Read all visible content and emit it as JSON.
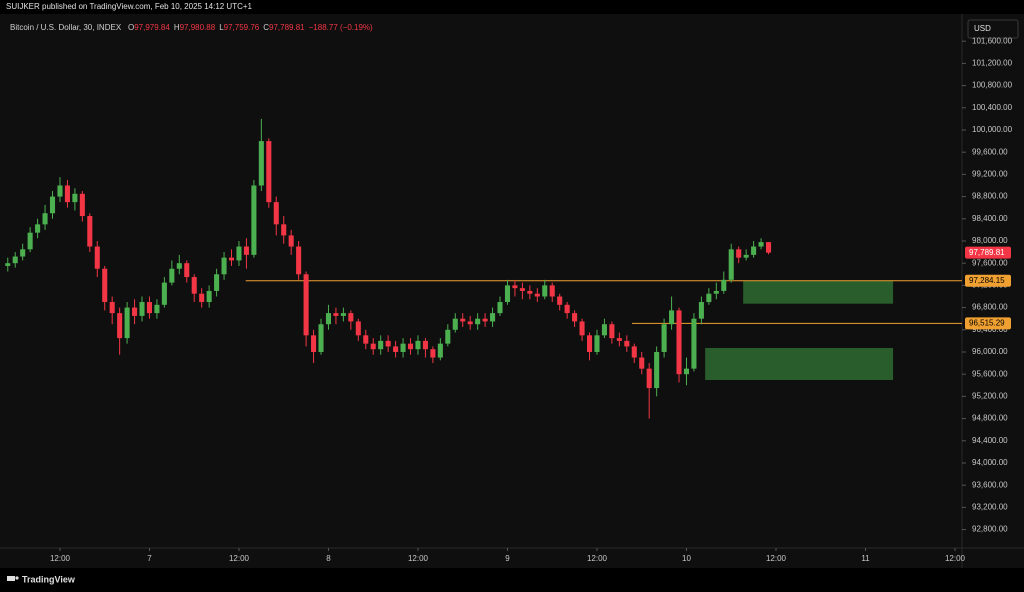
{
  "header": "SUIJKER published on TradingView.com, Feb 10, 2025 14:12 UTC+1",
  "footer": "TradingView",
  "chart_data": {
    "type": "candlestick",
    "symbol": "Bitcoin / U.S. Dollar, 30, INDEX",
    "ohlc_legend": [
      {
        "key": "O",
        "value": "97,979.84"
      },
      {
        "key": "H",
        "value": "97,980.88"
      },
      {
        "key": "L",
        "value": "97,759.76"
      },
      {
        "key": "C",
        "value": "97,789.81"
      }
    ],
    "change": "−188.77 (−0.19%)",
    "currency": "USD",
    "up_color": "#4caf50",
    "down_color": "#f23645",
    "xlim": [
      4.63,
      132.94
    ],
    "xticks": [
      {
        "value": 12,
        "label": "12:00"
      },
      {
        "value": 24,
        "label": "7"
      },
      {
        "value": 36,
        "label": "12:00"
      },
      {
        "value": 48,
        "label": "8"
      },
      {
        "value": 60,
        "label": "12:00"
      },
      {
        "value": 72,
        "label": "9"
      },
      {
        "value": 84,
        "label": "12:00"
      },
      {
        "value": 96,
        "label": "10"
      },
      {
        "value": 108,
        "label": "12:00"
      },
      {
        "value": 120,
        "label": "11"
      },
      {
        "value": 132,
        "label": "12:00"
      }
    ],
    "ylim": [
      92468,
      102036
    ],
    "yticks": [
      {
        "value": 92800,
        "label": "92,800.00"
      },
      {
        "value": 93200,
        "label": "93,200.00"
      },
      {
        "value": 93600,
        "label": "93,600.00"
      },
      {
        "value": 94000,
        "label": "94,000.00"
      },
      {
        "value": 94400,
        "label": "94,400.00"
      },
      {
        "value": 94800,
        "label": "94,800.00"
      },
      {
        "value": 95200,
        "label": "95,200.00"
      },
      {
        "value": 95600,
        "label": "95,600.00"
      },
      {
        "value": 96000,
        "label": "96,000.00"
      },
      {
        "value": 96400,
        "label": "96,400.00"
      },
      {
        "value": 96800,
        "label": "96,800.00"
      },
      {
        "value": 97200,
        "label": "97,200.00"
      },
      {
        "value": 97600,
        "label": "97,600.00"
      },
      {
        "value": 98000,
        "label": "98,000.00"
      },
      {
        "value": 98400,
        "label": "98,400.00"
      },
      {
        "value": 98800,
        "label": "98,800.00"
      },
      {
        "value": 99200,
        "label": "99,200.00"
      },
      {
        "value": 99600,
        "label": "99,600.00"
      },
      {
        "value": 100000,
        "label": "100,000.00"
      },
      {
        "value": 100400,
        "label": "100,400.00"
      },
      {
        "value": 100800,
        "label": "100,800.00"
      },
      {
        "value": 101200,
        "label": "101,200.00"
      },
      {
        "value": 101600,
        "label": "101,600.00"
      }
    ],
    "grid": false,
    "candles": {
      "x": [
        5,
        6,
        7,
        8,
        9,
        10,
        11,
        12,
        13,
        14,
        15,
        16,
        17,
        18,
        19,
        20,
        21,
        22,
        23,
        24,
        25,
        26,
        27,
        28,
        29,
        30,
        31,
        32,
        33,
        34,
        35,
        36,
        37,
        38,
        39,
        40,
        41,
        42,
        43,
        44,
        45,
        46,
        47,
        48,
        49,
        50,
        51,
        52,
        53,
        54,
        55,
        56,
        57,
        58,
        59,
        60,
        61,
        62,
        63,
        64,
        65,
        66,
        67,
        68,
        69,
        70,
        71,
        72,
        73,
        74,
        75,
        76,
        77,
        78,
        79,
        80,
        81,
        82,
        83,
        84,
        85,
        86,
        87,
        88,
        89,
        90,
        91,
        92,
        93,
        94,
        95,
        96,
        97,
        98,
        99,
        100,
        101,
        102,
        103,
        104,
        105,
        106,
        107
      ],
      "open": [
        97550,
        97600,
        97720,
        97850,
        98150,
        98300,
        98500,
        98800,
        99000,
        98700,
        98850,
        98450,
        97900,
        97500,
        96900,
        96700,
        96250,
        96800,
        96650,
        96900,
        96700,
        96850,
        97250,
        97500,
        97600,
        97350,
        97050,
        96900,
        97100,
        97400,
        97700,
        97650,
        97900,
        97750,
        99000,
        99800,
        98700,
        98300,
        98100,
        97900,
        97400,
        96300,
        96000,
        96500,
        96700,
        96650,
        96700,
        96550,
        96300,
        96150,
        96050,
        96200,
        96100,
        96000,
        96150,
        96050,
        96200,
        96050,
        95900,
        96150,
        96400,
        96600,
        96550,
        96500,
        96600,
        96550,
        96700,
        96900,
        97200,
        97150,
        97100,
        97050,
        97000,
        97200,
        97000,
        96850,
        96700,
        96550,
        96300,
        96000,
        96300,
        96500,
        96250,
        96200,
        96100,
        95900,
        95700,
        95350,
        96000,
        96500,
        96750,
        95600,
        95700,
        96600,
        96900,
        97050,
        97100,
        97300,
        97850,
        97700,
        97750,
        97900,
        97979.84
      ],
      "high": [
        97700,
        97800,
        97950,
        98250,
        98400,
        98650,
        98900,
        99150,
        99100,
        98950,
        98900,
        98500,
        98000,
        97550,
        97000,
        96800,
        96900,
        96950,
        97000,
        97000,
        96950,
        97350,
        97650,
        97750,
        97650,
        97400,
        97150,
        97200,
        97500,
        97800,
        97850,
        98000,
        98050,
        99100,
        100200,
        99850,
        98800,
        98450,
        98200,
        98000,
        97450,
        96400,
        96600,
        96850,
        96800,
        96800,
        96750,
        96600,
        96400,
        96250,
        96300,
        96300,
        96200,
        96250,
        96250,
        96300,
        96250,
        96100,
        96250,
        96500,
        96700,
        96700,
        96650,
        96700,
        96700,
        96800,
        97000,
        97300,
        97300,
        97250,
        97200,
        97150,
        97300,
        97250,
        97050,
        96900,
        96750,
        96600,
        96350,
        96400,
        96600,
        96550,
        96350,
        96300,
        96150,
        96000,
        95800,
        96100,
        96600,
        97000,
        96800,
        95900,
        96700,
        97000,
        97150,
        97250,
        97450,
        97950,
        97900,
        97850,
        98000,
        98050,
        97980.88
      ],
      "low": [
        97450,
        97520,
        97650,
        97800,
        98050,
        98200,
        98400,
        98700,
        98600,
        98550,
        98350,
        97800,
        97350,
        96750,
        96500,
        95950,
        96150,
        96500,
        96550,
        96600,
        96600,
        96800,
        97200,
        97400,
        97250,
        96900,
        96800,
        96800,
        97000,
        97300,
        97550,
        97550,
        97500,
        97700,
        98900,
        98600,
        98100,
        97950,
        97750,
        97300,
        96100,
        95800,
        95950,
        96400,
        96500,
        96550,
        96400,
        96200,
        96050,
        95950,
        95950,
        96000,
        95900,
        95900,
        95950,
        95950,
        95900,
        95800,
        95850,
        96100,
        96350,
        96450,
        96400,
        96400,
        96450,
        96450,
        96650,
        96850,
        97000,
        96950,
        96950,
        96900,
        96950,
        96900,
        96750,
        96600,
        96450,
        96200,
        95850,
        95950,
        96250,
        96150,
        96100,
        96000,
        95800,
        95600,
        94800,
        95200,
        95900,
        96400,
        95450,
        95400,
        95650,
        96500,
        96850,
        96950,
        97050,
        97250,
        97600,
        97650,
        97700,
        97850,
        97759.76
      ],
      "close": [
        97600,
        97720,
        97850,
        98150,
        98300,
        98500,
        98800,
        99000,
        98700,
        98850,
        98450,
        97900,
        97500,
        96900,
        96700,
        96250,
        96800,
        96650,
        96900,
        96700,
        96850,
        97250,
        97500,
        97600,
        97350,
        97050,
        96900,
        97100,
        97400,
        97700,
        97650,
        97900,
        97750,
        99000,
        99800,
        98700,
        98300,
        98100,
        97900,
        97400,
        96300,
        96000,
        96500,
        96700,
        96650,
        96700,
        96550,
        96300,
        96150,
        96050,
        96200,
        96100,
        96000,
        96150,
        96050,
        96200,
        96050,
        95900,
        96150,
        96400,
        96600,
        96550,
        96500,
        96600,
        96550,
        96700,
        96900,
        97200,
        97150,
        97100,
        97050,
        97000,
        97200,
        97000,
        96850,
        96700,
        96550,
        96300,
        96000,
        96300,
        96500,
        96250,
        96200,
        96100,
        95900,
        95700,
        95350,
        96000,
        96500,
        96750,
        95600,
        95700,
        96600,
        96900,
        97050,
        97100,
        97300,
        97850,
        97700,
        97750,
        97900,
        97979.84,
        97789.81
      ]
    },
    "levels": [
      {
        "value": 97284.15,
        "label": "97,284.15",
        "start_x": 36.9,
        "color": "#f0a030"
      },
      {
        "value": 96515.29,
        "label": "96,515.29",
        "start_x": 88.7,
        "color": "#f0a030"
      }
    ],
    "zones": [
      {
        "x0": 103.6,
        "x1": 123.7,
        "y0": 96870,
        "y1": 97284,
        "color": "#2e6b30"
      },
      {
        "x0": 98.5,
        "x1": 123.7,
        "y0": 95495,
        "y1": 96072,
        "color": "#2e6b30"
      }
    ],
    "last_price": {
      "value": 97789.81,
      "label": "97,789.81",
      "color": "#f23645"
    }
  }
}
